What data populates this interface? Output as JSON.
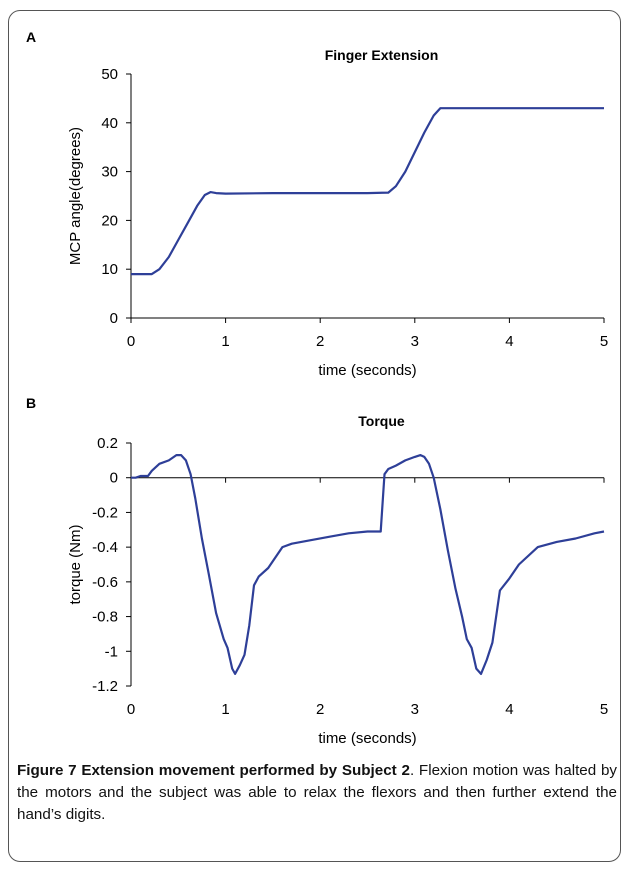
{
  "chart_data": [
    {
      "type": "line",
      "panel_label": "A",
      "title": "Finger Extension",
      "xlabel": "time (seconds)",
      "ylabel": "MCP angle(degrees)",
      "xlim": [
        0,
        5
      ],
      "ylim": [
        0,
        50
      ],
      "xticks": [
        0,
        1,
        2,
        3,
        4,
        5
      ],
      "yticks": [
        0,
        10,
        20,
        30,
        40,
        50
      ],
      "grid": false,
      "color": "#2e3f98",
      "series": [
        {
          "x": [
            0,
            0.22,
            0.3,
            0.4,
            0.5,
            0.6,
            0.7,
            0.78,
            0.84,
            0.9,
            1.0,
            1.5,
            2.0,
            2.5,
            2.72,
            2.8,
            2.9,
            3.0,
            3.1,
            3.2,
            3.27,
            3.35,
            4.0,
            5.0
          ],
          "y": [
            9,
            9,
            10,
            12.5,
            16,
            19.5,
            23,
            25.2,
            25.8,
            25.6,
            25.5,
            25.6,
            25.6,
            25.6,
            25.7,
            27,
            30,
            34,
            38,
            41.5,
            43,
            43,
            43,
            43
          ]
        }
      ]
    },
    {
      "type": "line",
      "panel_label": "B",
      "title": "Torque",
      "xlabel": "time (seconds)",
      "ylabel": "torque (Nm)",
      "xlim": [
        0,
        5
      ],
      "ylim": [
        -1.2,
        0.2
      ],
      "xticks": [
        0,
        1,
        2,
        3,
        4,
        5
      ],
      "yticks": [
        0.2,
        0,
        -0.2,
        -0.4,
        -0.6,
        -0.8,
        -1,
        -1.2
      ],
      "grid": false,
      "color": "#2e3f98",
      "series": [
        {
          "x": [
            0,
            0.05,
            0.1,
            0.18,
            0.22,
            0.3,
            0.4,
            0.48,
            0.53,
            0.58,
            0.63,
            0.68,
            0.75,
            0.82,
            0.9,
            0.98,
            1.02,
            1.07,
            1.1,
            1.15,
            1.2,
            1.25,
            1.3,
            1.35,
            1.45,
            1.6,
            1.7,
            1.9,
            2.1,
            2.3,
            2.5,
            2.64,
            2.68,
            2.72,
            2.8,
            2.9,
            3.0,
            3.06,
            3.1,
            3.15,
            3.2,
            3.27,
            3.35,
            3.43,
            3.5,
            3.55,
            3.6,
            3.65,
            3.7,
            3.76,
            3.82,
            3.9,
            4.0,
            4.1,
            4.3,
            4.5,
            4.7,
            4.9,
            5.0
          ],
          "y": [
            0,
            0,
            0.01,
            0.01,
            0.04,
            0.08,
            0.1,
            0.13,
            0.13,
            0.1,
            0.02,
            -0.12,
            -0.35,
            -0.55,
            -0.78,
            -0.93,
            -0.98,
            -1.1,
            -1.13,
            -1.08,
            -1.02,
            -0.85,
            -0.62,
            -0.57,
            -0.52,
            -0.4,
            -0.38,
            -0.36,
            -0.34,
            -0.32,
            -0.31,
            -0.31,
            0.02,
            0.05,
            0.07,
            0.1,
            0.12,
            0.13,
            0.12,
            0.08,
            0.0,
            -0.18,
            -0.42,
            -0.64,
            -0.8,
            -0.93,
            -0.98,
            -1.1,
            -1.13,
            -1.05,
            -0.95,
            -0.65,
            -0.58,
            -0.5,
            -0.4,
            -0.37,
            -0.35,
            -0.32,
            -0.31
          ]
        }
      ]
    }
  ],
  "caption": {
    "bold": "Figure 7 Extension movement performed by Subject 2",
    "text": ". Flexion motion was halted by the motors and the subject was able to relax the flexors and then further extend the hand’s digits."
  }
}
